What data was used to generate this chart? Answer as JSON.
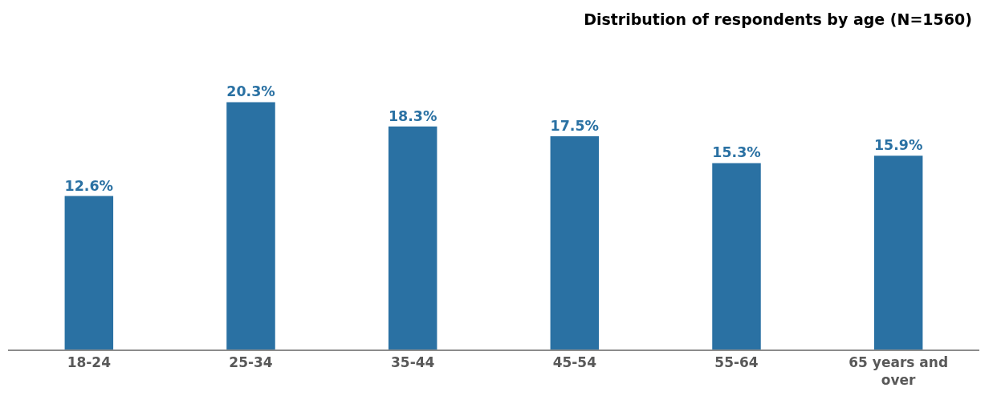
{
  "chart_data": {
    "type": "bar",
    "title": "Distribution of respondents by age (N=1560)",
    "categories": [
      "18-24",
      "25-34",
      "35-44",
      "45-54",
      "55-64",
      "65 years and over"
    ],
    "values": [
      12.6,
      20.3,
      18.3,
      17.5,
      15.3,
      15.9
    ],
    "value_labels": [
      "12.6%",
      "20.3%",
      "18.3%",
      "17.5%",
      "15.3%",
      "15.9%"
    ],
    "color": "#2a71a3"
  }
}
